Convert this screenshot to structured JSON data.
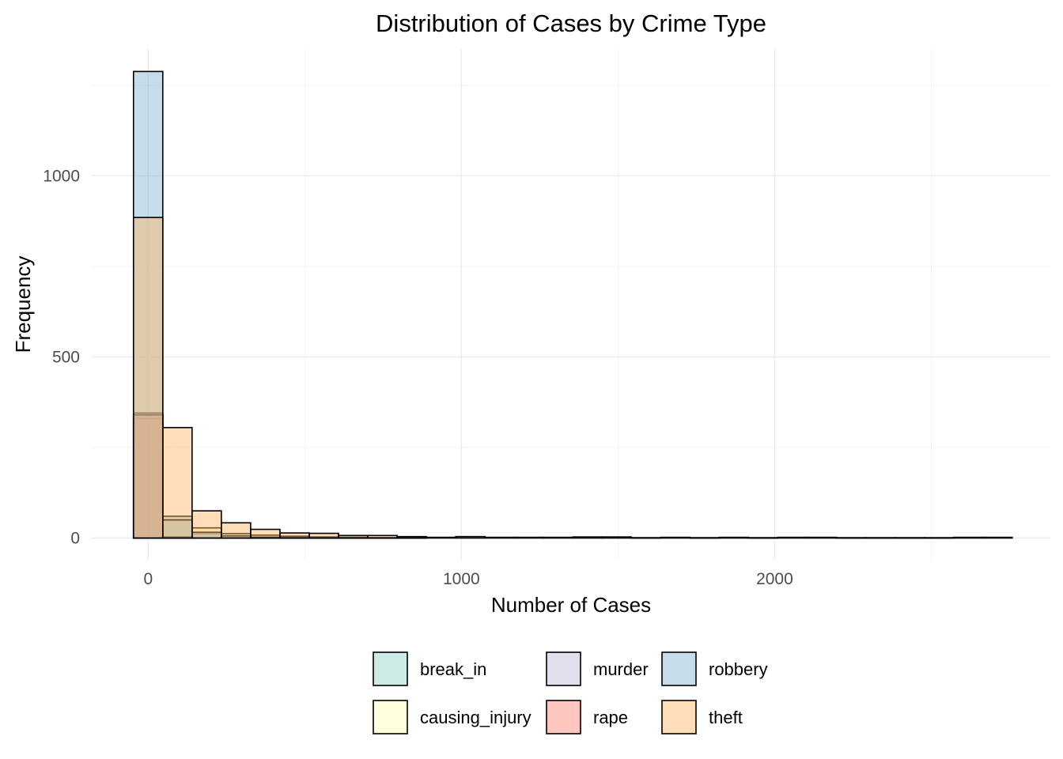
{
  "chart_data": {
    "type": "bar",
    "subtype": "overlapping-histogram",
    "title": "Distribution of Cases by Crime Type",
    "xlabel": "Number of Cases",
    "ylabel": "Frequency",
    "xlim": [
      -180,
      2880
    ],
    "ylim": [
      -60,
      1350
    ],
    "x_ticks": [
      0,
      1000,
      2000
    ],
    "y_ticks": [
      0,
      500,
      1000
    ],
    "grid": true,
    "bin_width": 93.5,
    "bin_starts": [
      -46.75,
      46.75,
      140.25,
      233.75,
      327.25,
      420.75,
      514.25,
      607.75,
      701.25,
      794.75,
      888.25,
      981.75,
      1075.25,
      1168.75,
      1262.25,
      1355.75,
      1449.25,
      1542.75,
      1636.25,
      1729.75,
      1823.25,
      1916.75,
      2010.25,
      2103.75,
      2197.25,
      2290.75,
      2384.25,
      2477.75,
      2571.25,
      2664.75
    ],
    "bar_opacity": 0.45,
    "legend_position": "bottom",
    "series": [
      {
        "name": "break_in",
        "color": "#8DD3C7",
        "values": [
          330,
          60,
          12,
          6,
          3,
          2,
          1,
          1,
          1,
          0,
          0,
          0,
          0,
          0,
          0,
          0,
          0,
          0,
          0,
          0,
          0,
          0,
          0,
          0,
          0,
          0,
          0,
          0,
          0,
          0
        ]
      },
      {
        "name": "causing_injury",
        "color": "#FFFFB3",
        "values": [
          345,
          50,
          28,
          12,
          8,
          5,
          3,
          2,
          1,
          1,
          0,
          0,
          0,
          0,
          0,
          0,
          0,
          0,
          0,
          0,
          0,
          0,
          0,
          0,
          0,
          0,
          0,
          0,
          0,
          0
        ]
      },
      {
        "name": "murder",
        "color": "#BEBADA",
        "values": [
          340,
          2,
          0,
          0,
          0,
          0,
          0,
          0,
          0,
          0,
          0,
          0,
          0,
          0,
          0,
          0,
          0,
          0,
          0,
          0,
          0,
          0,
          0,
          0,
          0,
          0,
          0,
          0,
          0,
          0
        ]
      },
      {
        "name": "rape",
        "color": "#FB8072",
        "values": [
          340,
          3,
          0,
          0,
          0,
          0,
          0,
          0,
          0,
          0,
          0,
          0,
          0,
          0,
          0,
          0,
          0,
          0,
          0,
          0,
          0,
          0,
          0,
          0,
          0,
          0,
          0,
          0,
          0,
          0
        ]
      },
      {
        "name": "robbery",
        "color": "#80B1D3",
        "values": [
          1288,
          50,
          16,
          6,
          2,
          1,
          1,
          0,
          0,
          0,
          0,
          0,
          0,
          0,
          0,
          0,
          0,
          0,
          0,
          0,
          0,
          0,
          0,
          0,
          0,
          0,
          0,
          0,
          0,
          0
        ]
      },
      {
        "name": "theft",
        "color": "#FDB462",
        "values": [
          885,
          305,
          75,
          42,
          24,
          14,
          13,
          7,
          7,
          4,
          2,
          4,
          2,
          2,
          2,
          3,
          3,
          1,
          2,
          1,
          2,
          1,
          2,
          2,
          1,
          1,
          1,
          1,
          2,
          2
        ]
      }
    ]
  },
  "legend": {
    "items": [
      {
        "label": "break_in",
        "color": "#8DD3C7"
      },
      {
        "label": "murder",
        "color": "#BEBADA"
      },
      {
        "label": "robbery",
        "color": "#80B1D3"
      },
      {
        "label": "causing_injury",
        "color": "#FFFFB3"
      },
      {
        "label": "rape",
        "color": "#FB8072"
      },
      {
        "label": "theft",
        "color": "#FDB462"
      }
    ]
  }
}
